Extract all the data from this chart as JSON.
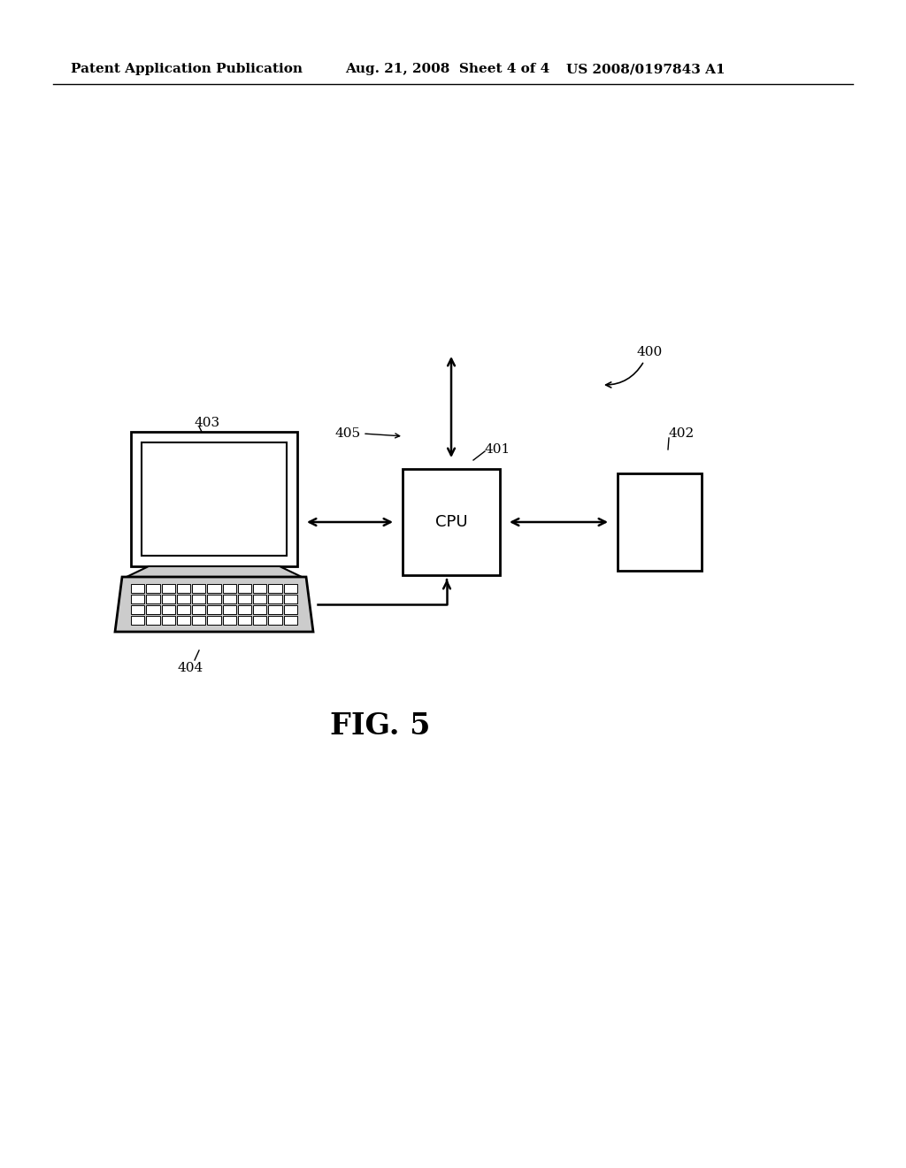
{
  "background_color": "#ffffff",
  "header_left": "Patent Application Publication",
  "header_center": "Aug. 21, 2008  Sheet 4 of 4",
  "header_right": "US 2008/0197843 A1",
  "fig_label": "FIG. 5",
  "label_fontsize": 11,
  "fig_label_fontsize": 24,
  "cpu_label": "CPU",
  "cpu_label_fontsize": 13,
  "note_400": "400",
  "note_401": "401",
  "note_402": "402",
  "note_403": "403",
  "note_404": "404",
  "note_405": "405"
}
